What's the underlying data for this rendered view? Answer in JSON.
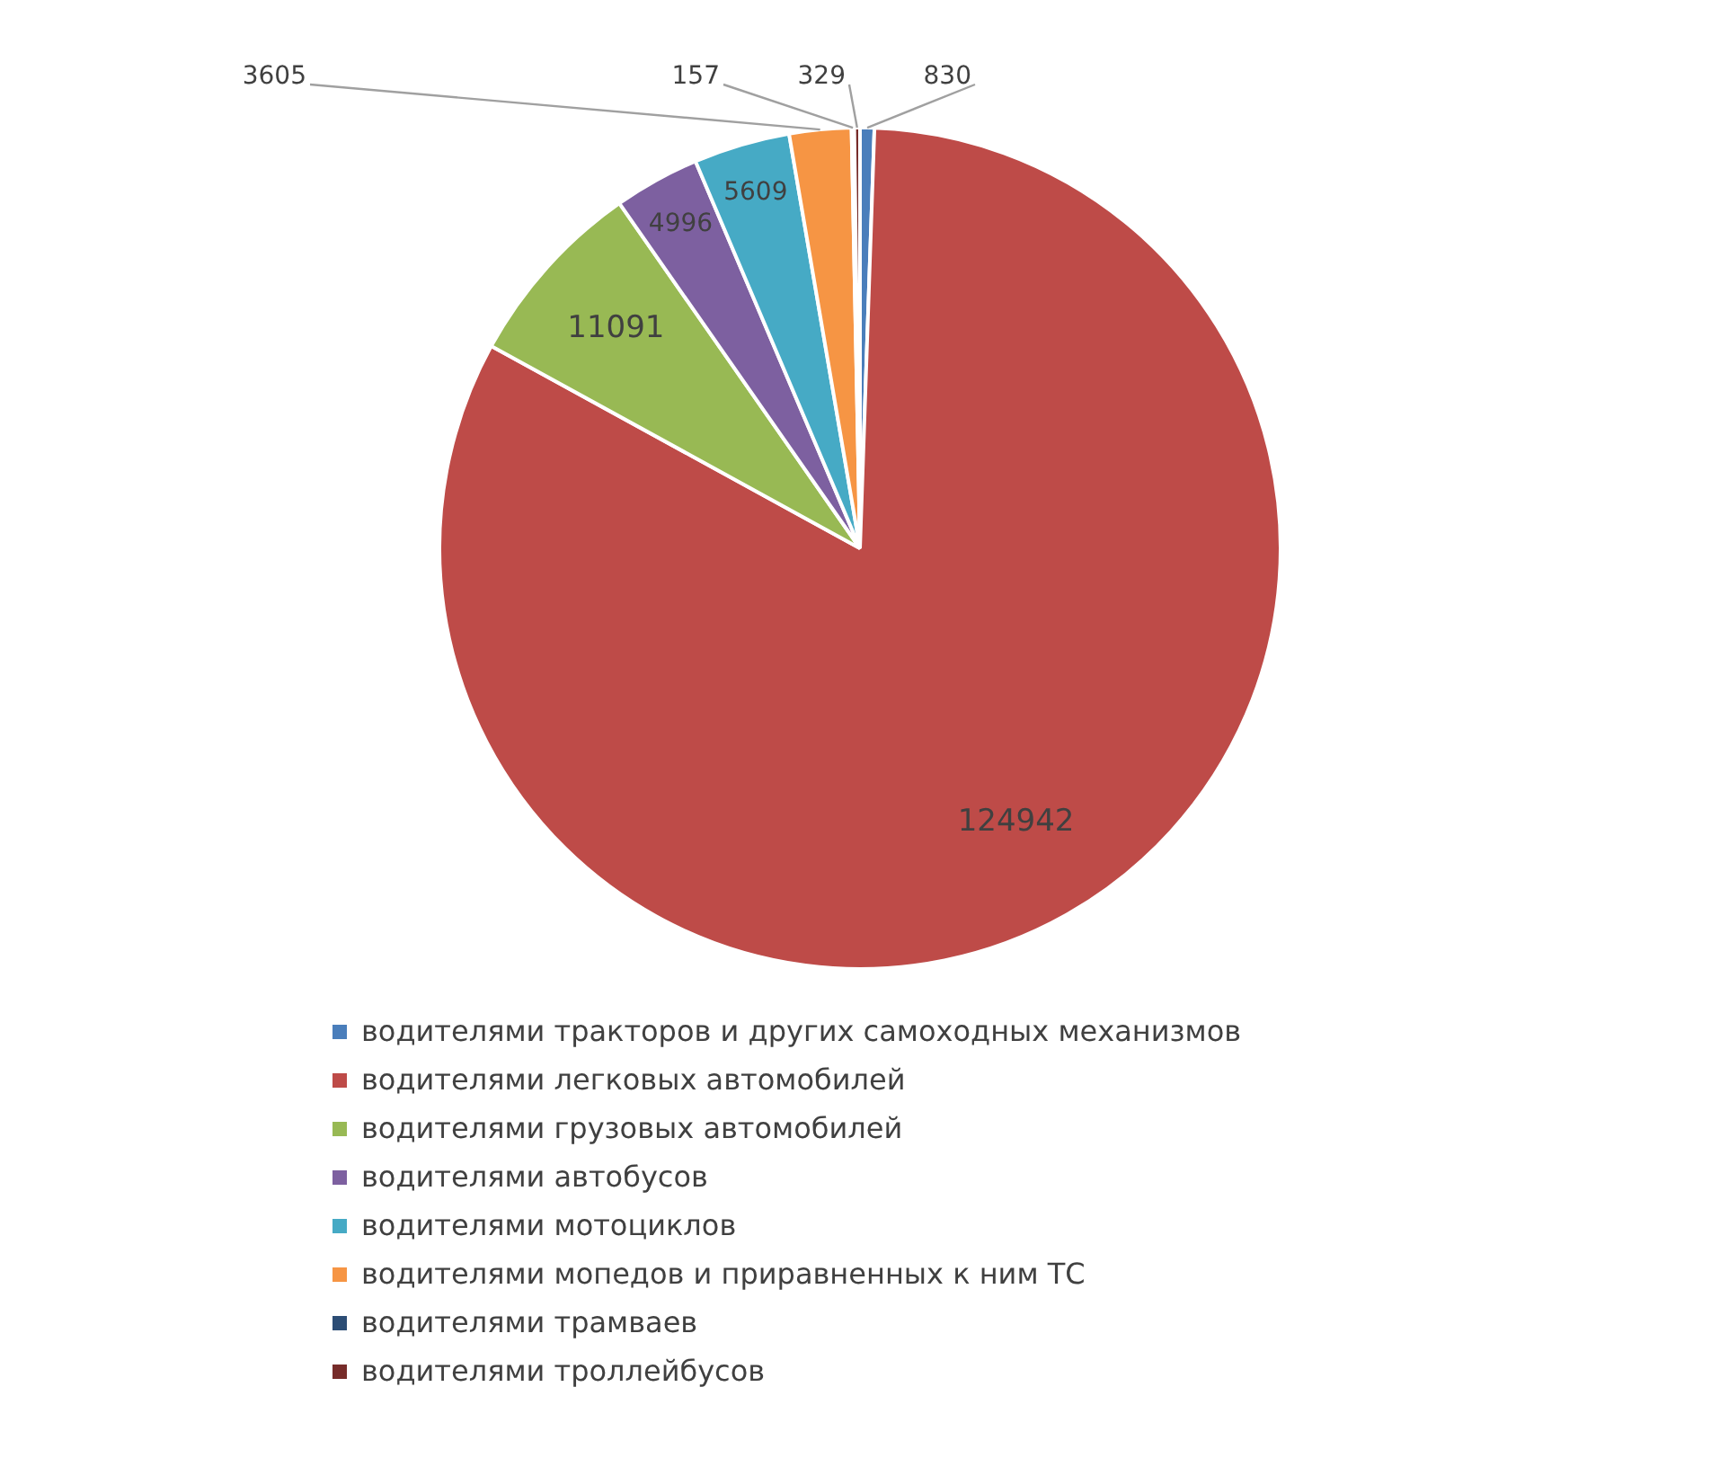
{
  "chart_data": {
    "type": "pie",
    "categories": [
      "водителями тракторов и других самоходных механизмов",
      "водителями легковых автомобилей",
      "водителями грузовых автомобилей",
      "водителями автобусов",
      "водителями мотоциклов",
      "водителями мопедов и приравненных к ним ТС",
      "водителями трамваев",
      "водителями троллейбусов"
    ],
    "values": [
      830,
      124942,
      11091,
      4996,
      5609,
      3605,
      157,
      329
    ],
    "colors": [
      "#4a7ebb",
      "#be4b48",
      "#98b954",
      "#7d60a0",
      "#46aac5",
      "#f69544",
      "#2c4d75",
      "#772c2a"
    ],
    "data_labels": true,
    "legend": "bottom"
  }
}
